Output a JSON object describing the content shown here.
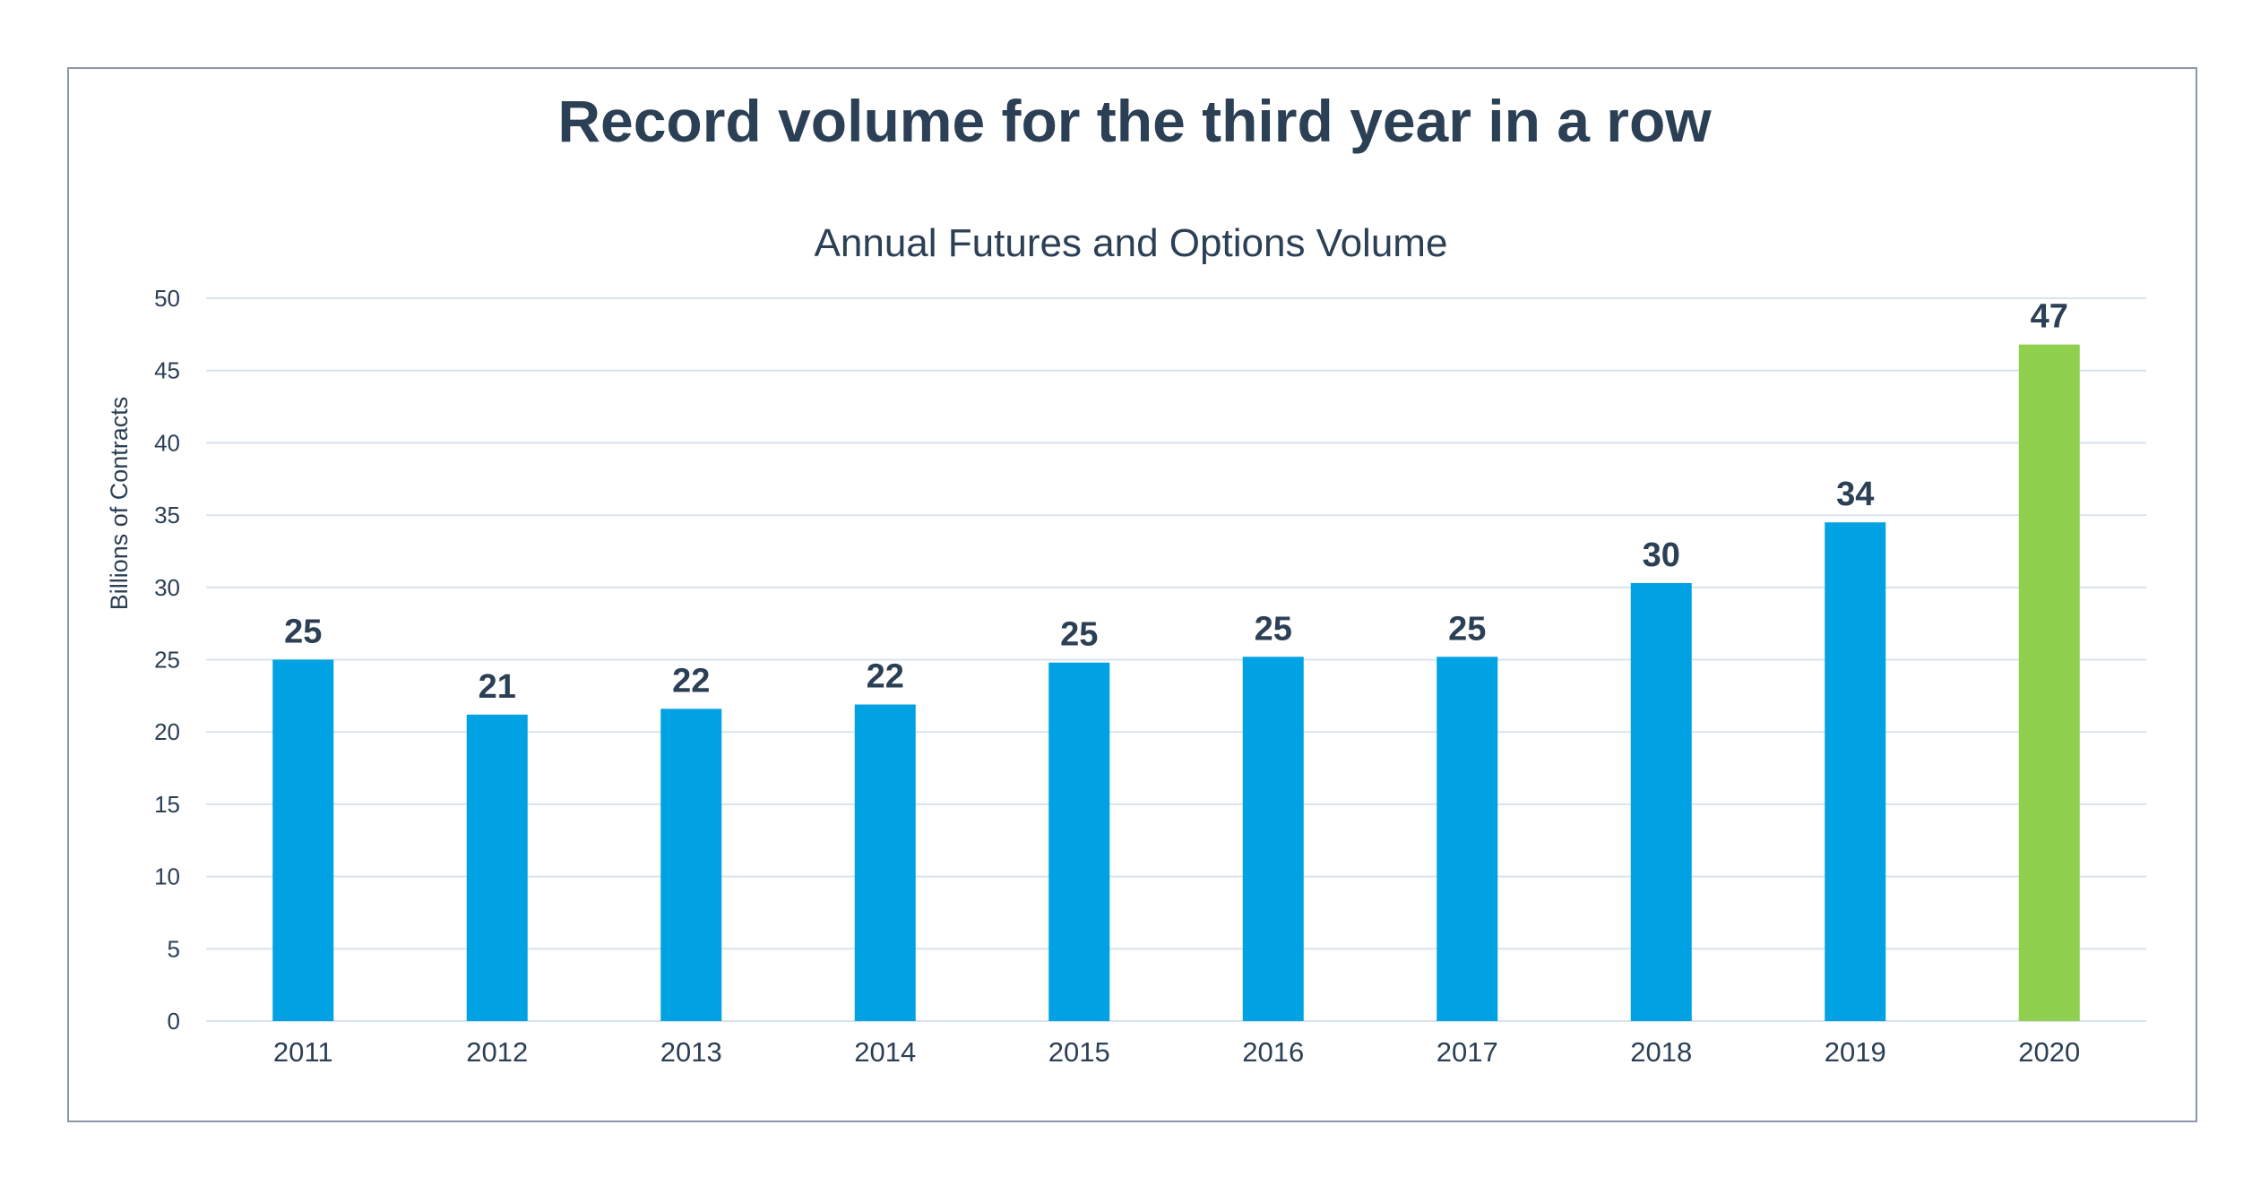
{
  "chart_data": {
    "type": "bar",
    "title": "Record volume for the third year in a row",
    "subtitle": "Annual Futures and Options Volume",
    "xlabel": "",
    "ylabel": "Billions of Contracts",
    "ylim": [
      0,
      50
    ],
    "yticks": [
      "0",
      "5",
      "10",
      "15",
      "20",
      "25",
      "30",
      "35",
      "40",
      "45",
      "50"
    ],
    "grid": true,
    "categories": [
      "2011",
      "2012",
      "2013",
      "2014",
      "2015",
      "2016",
      "2017",
      "2018",
      "2019",
      "2020"
    ],
    "values": [
      25.0,
      21.2,
      21.6,
      21.9,
      24.8,
      25.2,
      25.2,
      30.3,
      34.5,
      46.8
    ],
    "data_labels": [
      "25",
      "21",
      "22",
      "22",
      "25",
      "25",
      "25",
      "30",
      "34",
      "47"
    ],
    "colors": {
      "default_bar": "#00a2e3",
      "highlight_bar": "#8fd14f",
      "text": "#2b3f55",
      "grid": "#d9e3ec",
      "frame": "#8a98a8"
    },
    "highlight_index": 9
  }
}
